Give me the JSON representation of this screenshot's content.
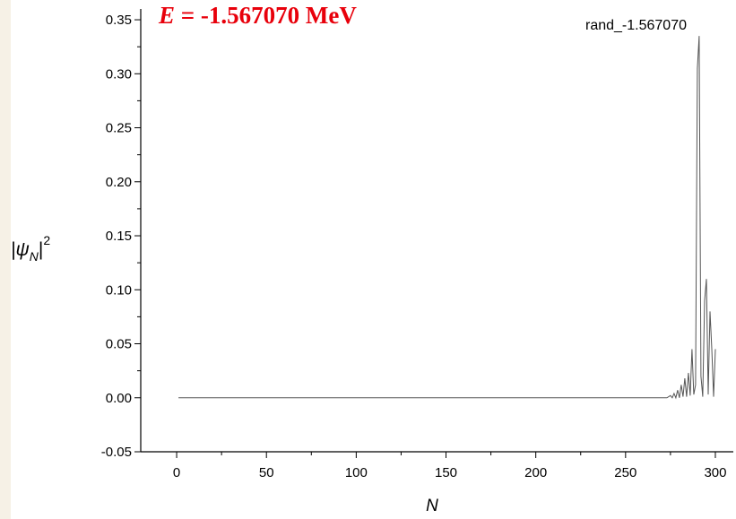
{
  "chart_data": {
    "type": "line",
    "annotation": {
      "symbol": "E",
      "text": " = -1.567070 MeV",
      "color": "#e8000b"
    },
    "legend": "rand_-1.567070",
    "legend_position": "top-right",
    "xlabel": "N",
    "ylabel": {
      "main": "|ψ",
      "sub": "N",
      "close": "|",
      "sup": "2"
    },
    "xlim": [
      -20,
      310
    ],
    "ylim": [
      -0.05,
      0.36
    ],
    "x_ticks": [
      0,
      50,
      100,
      150,
      200,
      250,
      300
    ],
    "x_tick_labels": [
      "0",
      "50",
      "100",
      "150",
      "200",
      "250",
      "300"
    ],
    "y_ticks": [
      -0.05,
      0,
      0.05,
      0.1,
      0.15,
      0.2,
      0.25,
      0.3,
      0.35
    ],
    "y_tick_labels": [
      "-0.05",
      "0.00",
      "0.05",
      "0.10",
      "0.15",
      "0.20",
      "0.25",
      "0.30",
      "0.35"
    ],
    "grid": false,
    "series": [
      {
        "color": "#555555",
        "x": [
          1,
          270,
          273,
          275,
          276,
          277,
          278,
          279,
          280,
          281,
          282,
          283,
          284,
          285,
          286,
          287,
          288,
          289,
          290,
          291,
          292,
          293,
          294,
          295,
          296,
          297,
          298,
          299,
          300
        ],
        "y": [
          0,
          0,
          0,
          0.002,
          0.0,
          0.004,
          0.0,
          0.007,
          0.0,
          0.012,
          0.001,
          0.018,
          0.001,
          0.023,
          0.002,
          0.045,
          0.003,
          0.012,
          0.305,
          0.335,
          0.02,
          0.001,
          0.09,
          0.11,
          0.003,
          0.08,
          0.045,
          0.001,
          0.045
        ]
      }
    ]
  }
}
